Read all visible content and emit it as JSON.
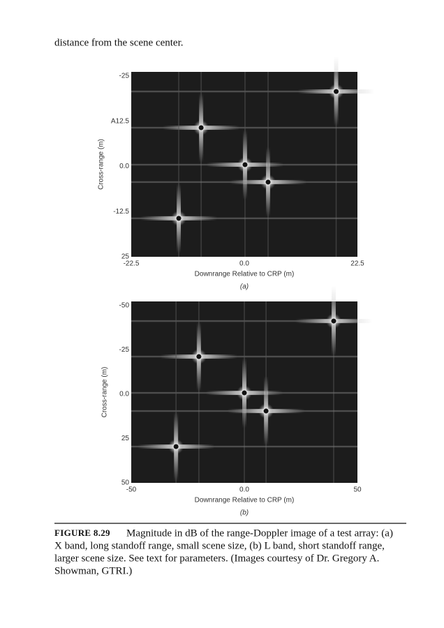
{
  "page": {
    "body_text": "distance from the scene center.",
    "figures": [
      {
        "y_ticks": [
          "-25",
          "A12.5",
          "0.0",
          "-12.5",
          "25"
        ],
        "x_ticks": [
          "-22.5",
          "0.0",
          "22.5"
        ],
        "y_label": "Cross-range (m)",
        "x_label": "Downrange Relative to CRP (m)",
        "panel": "(a)"
      },
      {
        "y_ticks": [
          "-50",
          "-25",
          "0.0",
          "25",
          "50"
        ],
        "x_ticks": [
          "-50",
          "0.0",
          "50"
        ],
        "y_label": "Cross-range (m)",
        "x_label": "Downrange Relative to CRP (m)",
        "panel": "(b)"
      }
    ],
    "caption": {
      "label": "FIGURE 8.29",
      "lines": [
        "Magnitude in dB of the range-Doppler image of a test array: (a)",
        "X band, long standoff range, small scene size, (b) L band, short standoff range,",
        "larger scene size. See text for parameters. (Images courtesy of Dr. Gregory A.",
        "Showman, GTRI.)"
      ]
    }
  }
}
